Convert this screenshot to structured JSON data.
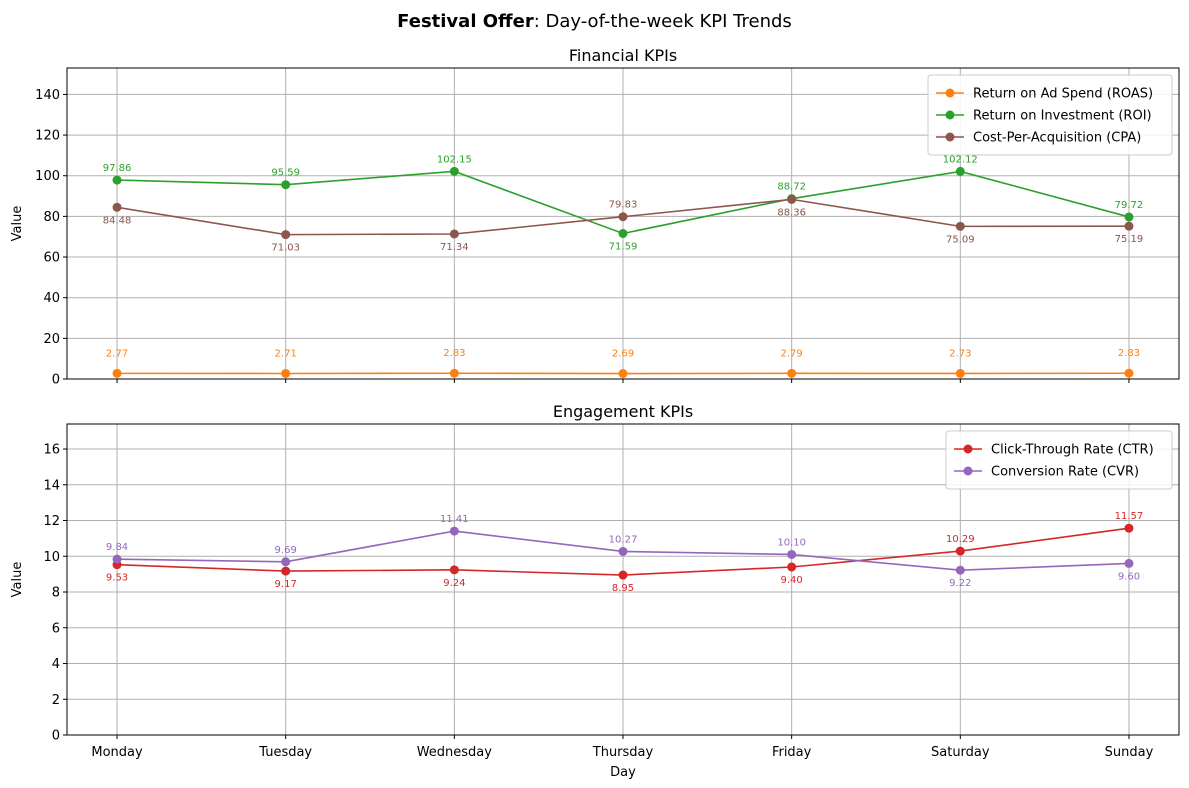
{
  "figure": {
    "title_bold": "Festival Offer",
    "title_rest": ": Day-of-the-week KPI Trends"
  },
  "chart_data": [
    {
      "type": "line",
      "title": "Financial KPIs",
      "xlabel": "",
      "ylabel": "Value",
      "categories": [
        "Monday",
        "Tuesday",
        "Wednesday",
        "Thursday",
        "Friday",
        "Saturday",
        "Sunday"
      ],
      "ylim": [
        0,
        153
      ],
      "yticks": [
        0,
        20,
        40,
        60,
        80,
        100,
        120,
        140
      ],
      "grid": true,
      "legend_position": "top-right",
      "show_x_tick_labels": false,
      "series": [
        {
          "name": "Return on Ad Spend (ROAS)",
          "color": "#ff7f0e",
          "values": [
            2.77,
            2.71,
            2.83,
            2.69,
            2.79,
            2.73,
            2.83
          ],
          "label_pos": [
            "above",
            "above",
            "above",
            "above",
            "above",
            "above",
            "above"
          ],
          "label_offset": 18
        },
        {
          "name": "Return on Investment (ROI)",
          "color": "#2ca02c",
          "values": [
            97.86,
            95.59,
            102.15,
            71.59,
            88.72,
            102.12,
            79.72
          ],
          "label_pos": [
            "above",
            "above",
            "above",
            "below",
            "above",
            "above",
            "above"
          ],
          "label_offset": 10
        },
        {
          "name": "Cost-Per-Acquisition (CPA)",
          "color": "#8c564b",
          "values": [
            84.48,
            71.03,
            71.34,
            79.83,
            88.36,
            75.09,
            75.19
          ],
          "label_pos": [
            "below",
            "below",
            "below",
            "above",
            "below",
            "below",
            "below"
          ],
          "label_offset": 10
        }
      ]
    },
    {
      "type": "line",
      "title": "Engagement KPIs",
      "xlabel": "Day",
      "ylabel": "Value",
      "categories": [
        "Monday",
        "Tuesday",
        "Wednesday",
        "Thursday",
        "Friday",
        "Saturday",
        "Sunday"
      ],
      "ylim": [
        0,
        17.4
      ],
      "yticks": [
        0,
        2,
        4,
        6,
        8,
        10,
        12,
        14,
        16
      ],
      "grid": true,
      "legend_position": "top-right",
      "show_x_tick_labels": true,
      "series": [
        {
          "name": "Click-Through Rate (CTR)",
          "color": "#d62728",
          "values": [
            9.53,
            9.17,
            9.24,
            8.95,
            9.4,
            10.29,
            11.57
          ],
          "label_pos": [
            "below",
            "below",
            "below",
            "below",
            "below",
            "above",
            "above"
          ],
          "label_offset": 10
        },
        {
          "name": "Conversion Rate (CVR)",
          "color": "#9467bd",
          "values": [
            9.84,
            9.69,
            11.41,
            10.27,
            10.1,
            9.22,
            9.6
          ],
          "label_pos": [
            "above",
            "above",
            "above",
            "above",
            "above",
            "below",
            "below"
          ],
          "label_offset": 10
        }
      ]
    }
  ]
}
